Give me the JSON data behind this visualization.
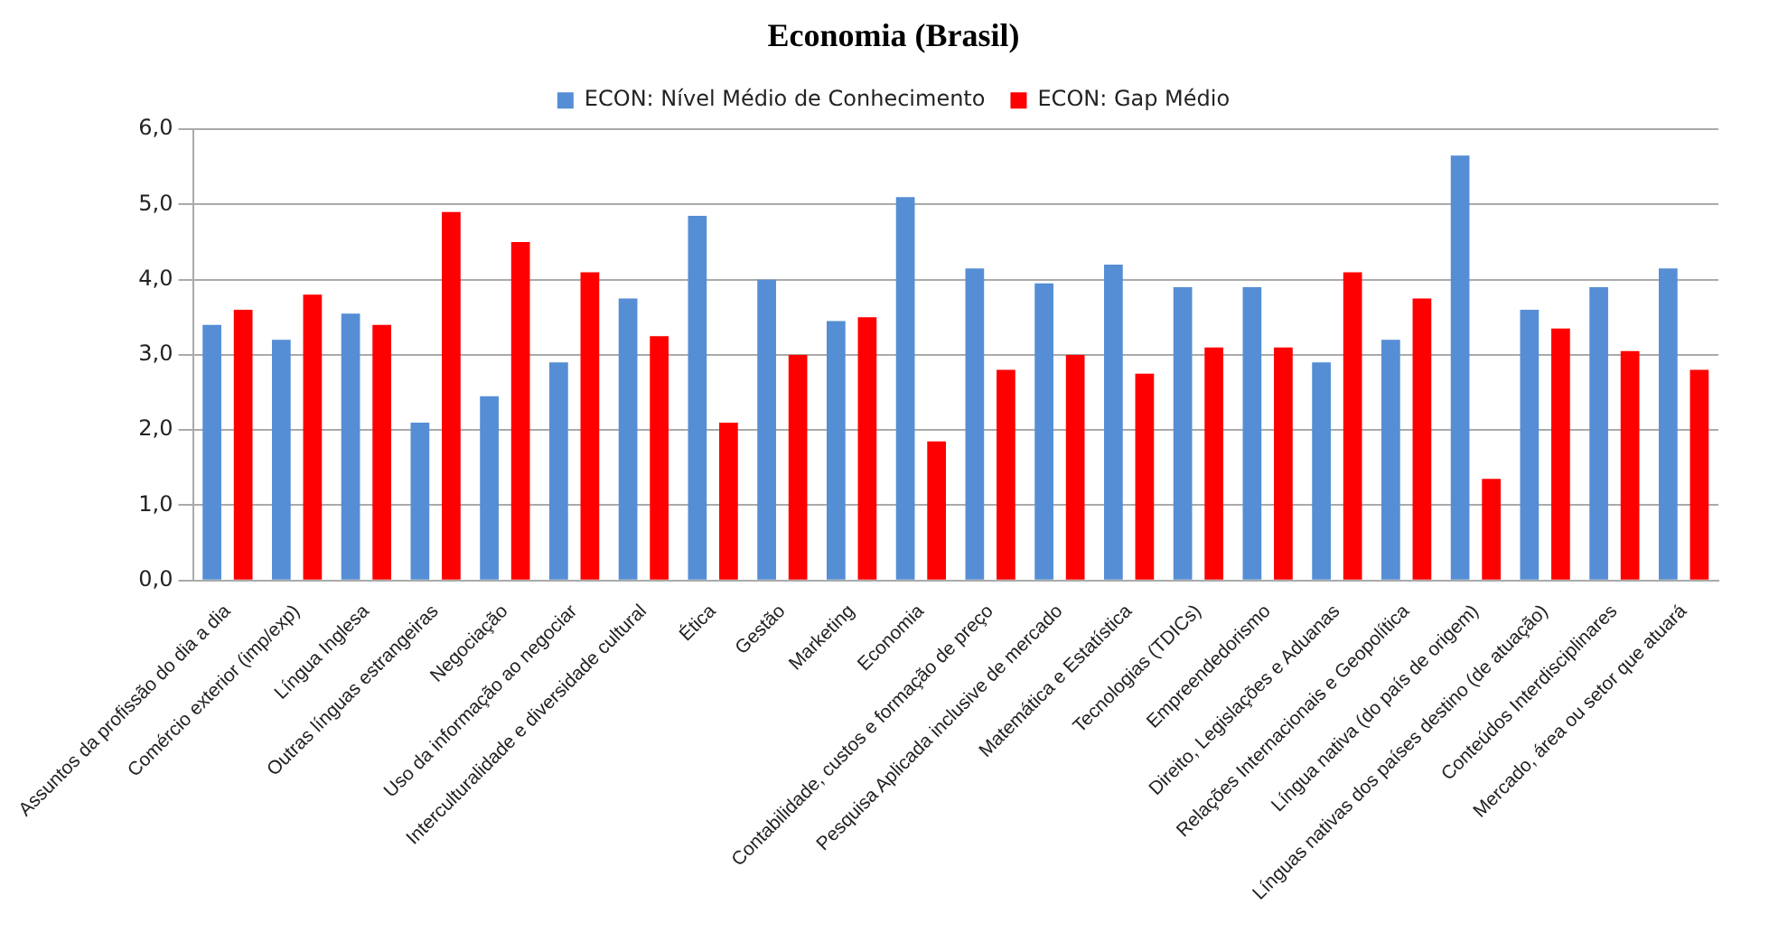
{
  "chart_data": {
    "type": "bar",
    "title": "Economia (Brasil)",
    "categories": [
      "Assuntos da profissão do dia a dia",
      "Comércio exterior (imp/exp)",
      "Língua Inglesa",
      "Outras línguas estrangeiras",
      "Negociação",
      "Uso da informação ao negociar",
      "Interculturalidade e diversidade cultural",
      "Ética",
      "Gestão",
      "Marketing",
      "Economia",
      "Contabilidade, custos e formação de preço",
      "Pesquisa Aplicada inclusive de mercado",
      "Matemática e Estatística",
      "Tecnologias (TDICs)",
      "Empreendedorismo",
      "Direito, Legislações e Aduanas",
      "Relações Internacionais e Geopolítica",
      "Língua nativa (do país de origem)",
      "Línguas nativas dos países destino (de atuação)",
      "Conteúdos Interdisciplinares",
      "Mercado, área ou setor que atuará"
    ],
    "series": [
      {
        "name": "ECON: Nível Médio de Conhecimento",
        "color": "#558ed5",
        "values": [
          3.4,
          3.2,
          3.55,
          2.1,
          2.45,
          2.9,
          3.75,
          4.85,
          4.0,
          3.45,
          5.1,
          4.15,
          3.95,
          4.2,
          3.9,
          3.9,
          2.9,
          3.2,
          5.65,
          3.6,
          3.9,
          4.15
        ]
      },
      {
        "name": "ECON: Gap Médio",
        "color": "#ff0000",
        "values": [
          3.6,
          3.8,
          3.4,
          4.9,
          4.5,
          4.1,
          3.25,
          2.1,
          3.0,
          3.5,
          1.85,
          2.8,
          3.0,
          2.75,
          3.1,
          3.1,
          4.1,
          3.75,
          1.35,
          3.35,
          3.05,
          2.8
        ]
      }
    ],
    "ylim": [
      0,
      6
    ],
    "yticks": [
      {
        "value": 0,
        "label": "0,0"
      },
      {
        "value": 1,
        "label": "1,0"
      },
      {
        "value": 2,
        "label": "2,0"
      },
      {
        "value": 3,
        "label": "3,0"
      },
      {
        "value": 4,
        "label": "4,0"
      },
      {
        "value": 5,
        "label": "5,0"
      },
      {
        "value": 6,
        "label": "6,0"
      }
    ],
    "grid": "y",
    "legend": "top"
  }
}
